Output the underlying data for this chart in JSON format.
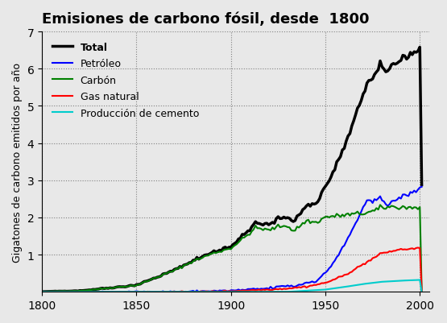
{
  "title": "Emisiones de carbono fósil, desde  1800",
  "ylabel": "Gigatones de carbono emitidos por año",
  "xlim": [
    1800,
    2005
  ],
  "ylim": [
    0,
    7
  ],
  "yticks": [
    1,
    2,
    3,
    4,
    5,
    6,
    7
  ],
  "xticks": [
    1800,
    1850,
    1900,
    1950,
    2000
  ],
  "bg_color": "#e8e8e8",
  "legend": [
    {
      "label": "Total",
      "color": "#000000",
      "lw": 2.5,
      "bold": true
    },
    {
      "label": "Petróleo",
      "color": "#0000ff",
      "lw": 1.5
    },
    {
      "label": "Carbón",
      "color": "#008000",
      "lw": 1.5
    },
    {
      "label": "Gas natural",
      "color": "#ff0000",
      "lw": 1.5
    },
    {
      "label": "Producción de cemento",
      "color": "#00cccc",
      "lw": 1.5
    }
  ]
}
